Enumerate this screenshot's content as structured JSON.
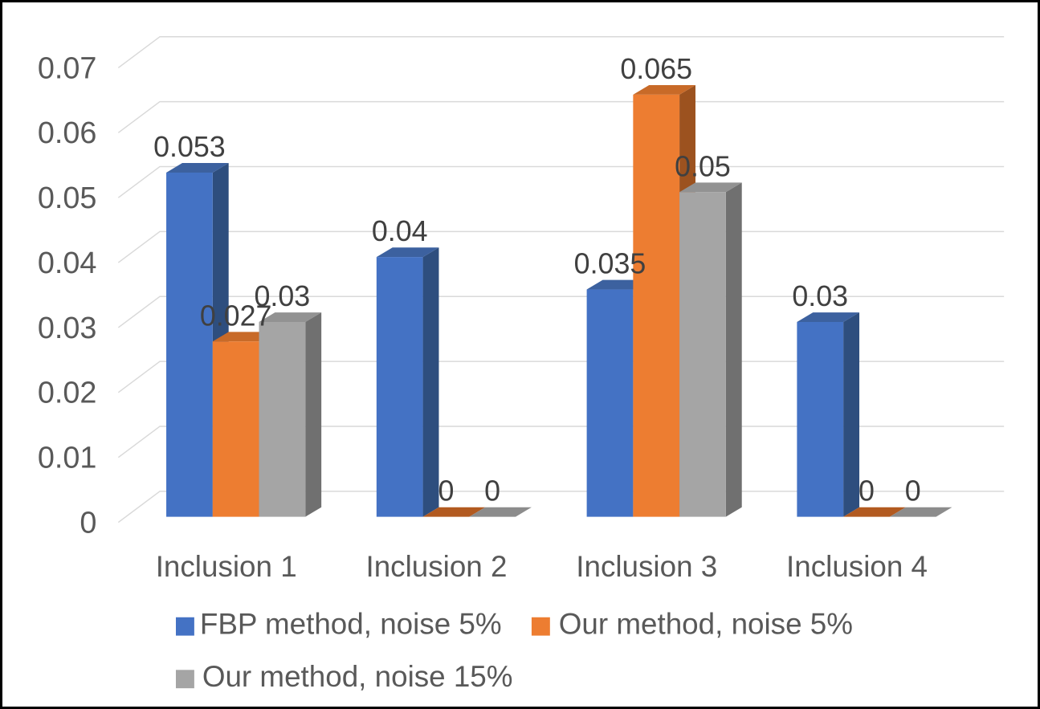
{
  "figure": {
    "background": "#FFFFFF",
    "frame_color": "#000000"
  },
  "chart_data": {
    "type": "bar",
    "variant": "3d-clustered",
    "title": "",
    "xlabel": "",
    "ylabel": "",
    "categories": [
      "Inclusion 1",
      "Inclusion 2",
      "Inclusion 3",
      "Inclusion 4"
    ],
    "series": [
      {
        "name": "FBP method, noise 5%",
        "values": [
          0.053,
          0.04,
          0.035,
          0.03
        ],
        "labels": [
          "0.053",
          "0.04",
          "0.035",
          "0.03"
        ],
        "color": "#4472C4",
        "color_top": "#3C619F",
        "color_side": "#2E4E7E",
        "color_zero": "#3C619F"
      },
      {
        "name": "Our method, noise 5%",
        "values": [
          0.027,
          0,
          0.065,
          0
        ],
        "labels": [
          "0.027",
          "0",
          "0.065",
          "0"
        ],
        "color": "#ED7D31",
        "color_top": "#C86A28",
        "color_side": "#9C521F",
        "color_zero": "#B25A20"
      },
      {
        "name": "Our method, noise 15%",
        "values": [
          0.03,
          0,
          0.05,
          0
        ],
        "labels": [
          "0.03",
          "0",
          "0.05",
          "0"
        ],
        "color": "#A5A5A5",
        "color_top": "#929292",
        "color_side": "#707070",
        "color_zero": "#8C8C8C"
      }
    ],
    "y_axis": {
      "min": 0,
      "max": 0.07,
      "step": 0.01,
      "tick_labels": [
        "0",
        "0.01",
        "0.02",
        "0.03",
        "0.04",
        "0.05",
        "0.06",
        "0.07"
      ]
    },
    "grid": true,
    "gridline_color": "#D9D9D9",
    "axis_text_color": "#595959",
    "data_label_color": "#404040",
    "legend": {
      "position": "bottom",
      "entries": [
        "FBP method, noise 5%",
        "Our method, noise 5%",
        "Our method, noise 15%"
      ]
    }
  }
}
